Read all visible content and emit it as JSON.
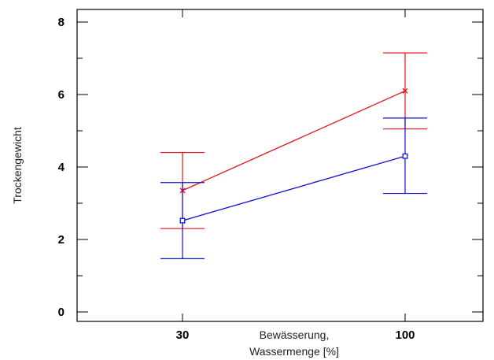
{
  "chart_data": {
    "type": "line",
    "title": "",
    "xlabel_line1": "Bewässerung,",
    "xlabel_line2": "Wassermenge [%]",
    "ylabel": "Trockengewicht",
    "categories": [
      "30",
      "100"
    ],
    "yticks": [
      "0",
      "2",
      "4",
      "6",
      "8"
    ],
    "ylim": [
      0,
      8
    ],
    "grid": false,
    "series": [
      {
        "color": "#e8141c",
        "marker": "x",
        "values": [
          3.35,
          6.1
        ],
        "error_low": [
          2.3,
          5.05
        ],
        "error_high": [
          4.4,
          7.15
        ]
      },
      {
        "color": "#1010d8",
        "marker": "square",
        "values": [
          2.52,
          4.3
        ],
        "error_low": [
          1.47,
          3.27
        ],
        "error_high": [
          3.57,
          5.35
        ]
      }
    ]
  }
}
